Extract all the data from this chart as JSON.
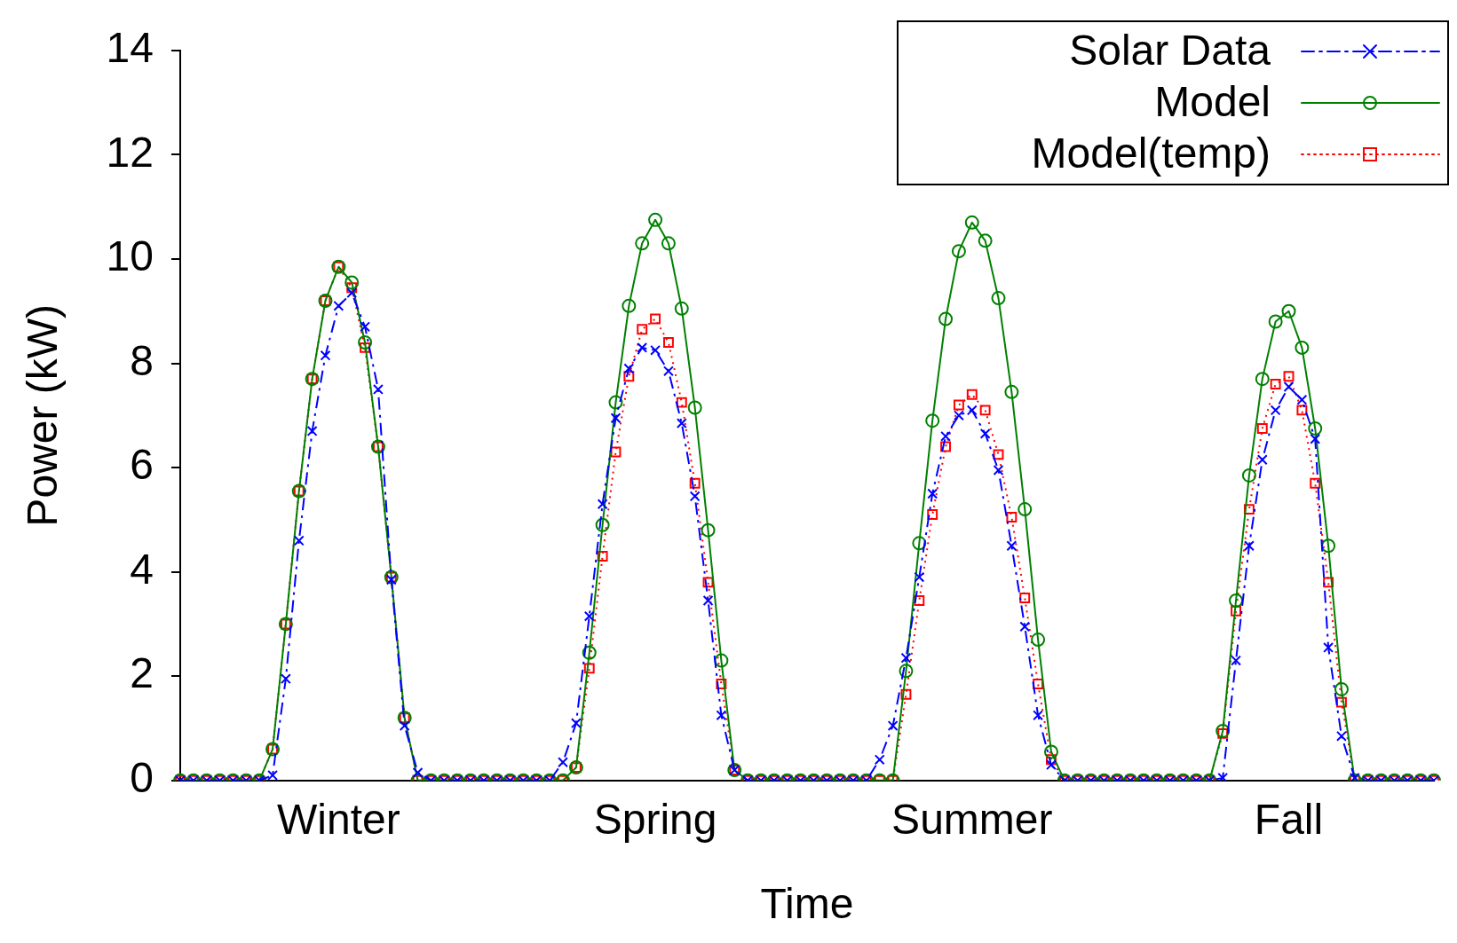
{
  "chart_data": {
    "type": "line",
    "xlabel": "Time",
    "ylabel": "Power (kW)",
    "categories": [
      null,
      null,
      null,
      null,
      null,
      null,
      null,
      null,
      null,
      null,
      null,
      null,
      "Winter",
      null,
      null,
      null,
      null,
      null,
      null,
      null,
      null,
      null,
      null,
      null,
      null,
      null,
      null,
      null,
      null,
      null,
      null,
      null,
      null,
      null,
      null,
      null,
      "Spring",
      null,
      null,
      null,
      null,
      null,
      null,
      null,
      null,
      null,
      null,
      null,
      null,
      null,
      null,
      null,
      null,
      null,
      null,
      null,
      null,
      null,
      null,
      null,
      "Summer",
      null,
      null,
      null,
      null,
      null,
      null,
      null,
      null,
      null,
      null,
      null,
      null,
      null,
      null,
      null,
      null,
      null,
      null,
      null,
      null,
      null,
      null,
      null,
      "Fall",
      null,
      null,
      null,
      null,
      null,
      null,
      null,
      null,
      null,
      null,
      null
    ],
    "ylim": [
      0,
      14
    ],
    "yticks": [
      0,
      2,
      4,
      6,
      8,
      10,
      12,
      14
    ],
    "grid": false,
    "legend": "top right",
    "series": [
      {
        "name": "Solar Data",
        "color": "#0000ff",
        "marker": "cross",
        "line_style": "dashdot",
        "values": [
          0,
          0,
          0,
          0,
          0,
          0,
          0,
          0.1,
          1.95,
          4.6,
          6.7,
          8.15,
          9.1,
          9.35,
          8.7,
          7.5,
          3.85,
          1.05,
          0.15,
          0,
          0,
          0,
          0,
          0,
          0,
          0,
          0,
          0,
          0,
          0.35,
          1.1,
          3.15,
          5.3,
          6.95,
          7.9,
          8.3,
          8.25,
          7.85,
          6.85,
          5.45,
          3.45,
          1.25,
          0.2,
          0,
          0,
          0,
          0,
          0,
          0,
          0,
          0,
          0,
          0,
          0.4,
          1.05,
          2.35,
          3.9,
          5.5,
          6.6,
          7.0,
          7.1,
          6.65,
          5.95,
          4.5,
          2.95,
          1.25,
          0.3,
          0,
          0,
          0,
          0,
          0,
          0,
          0,
          0,
          0,
          0,
          0,
          0,
          0.05,
          2.3,
          4.5,
          6.15,
          7.1,
          7.55,
          7.3,
          6.55,
          2.55,
          0.85,
          0.05,
          0,
          0,
          0,
          0,
          0,
          0
        ]
      },
      {
        "name": "Model",
        "color": "#008000",
        "marker": "circle",
        "line_style": "solid",
        "values": [
          0,
          0,
          0,
          0,
          0,
          0,
          0,
          0.6,
          3.0,
          5.55,
          7.7,
          9.2,
          9.85,
          9.55,
          8.4,
          6.4,
          3.9,
          1.2,
          0,
          0,
          0,
          0,
          0,
          0,
          0,
          0,
          0,
          0,
          0,
          0,
          0.25,
          2.45,
          4.9,
          7.25,
          9.1,
          10.3,
          10.75,
          10.3,
          9.05,
          7.15,
          4.8,
          2.3,
          0.2,
          0,
          0,
          0,
          0,
          0,
          0,
          0,
          0,
          0,
          0,
          0,
          0,
          2.1,
          4.55,
          6.9,
          8.85,
          10.15,
          10.7,
          10.35,
          9.25,
          7.45,
          5.2,
          2.7,
          0.55,
          0,
          0,
          0,
          0,
          0,
          0,
          0,
          0,
          0,
          0,
          0,
          0,
          0.95,
          3.45,
          5.85,
          7.7,
          8.8,
          9.0,
          8.3,
          6.75,
          4.5,
          1.75,
          0,
          0,
          0,
          0,
          0,
          0,
          0
        ]
      },
      {
        "name": "Model(temp)",
        "color": "#ff0000",
        "marker": "square",
        "line_style": "dotted",
        "values": [
          0,
          0,
          0,
          0,
          0,
          0,
          0,
          0.6,
          3.0,
          5.55,
          7.7,
          9.2,
          9.85,
          9.45,
          8.3,
          6.4,
          3.9,
          1.2,
          0,
          0,
          0,
          0,
          0,
          0,
          0,
          0,
          0,
          0,
          0,
          0,
          0.25,
          2.15,
          4.3,
          6.3,
          7.75,
          8.65,
          8.85,
          8.4,
          7.25,
          5.7,
          3.8,
          1.85,
          0.2,
          0,
          0,
          0,
          0,
          0,
          0,
          0,
          0,
          0,
          0,
          0,
          0,
          1.65,
          3.45,
          5.1,
          6.4,
          7.2,
          7.4,
          7.1,
          6.25,
          5.05,
          3.5,
          1.85,
          0.4,
          0,
          0,
          0,
          0,
          0,
          0,
          0,
          0,
          0,
          0,
          0,
          0,
          0.9,
          3.25,
          5.2,
          6.75,
          7.6,
          7.75,
          7.1,
          5.7,
          3.8,
          1.5,
          0,
          0,
          0,
          0,
          0,
          0,
          0
        ]
      }
    ]
  }
}
